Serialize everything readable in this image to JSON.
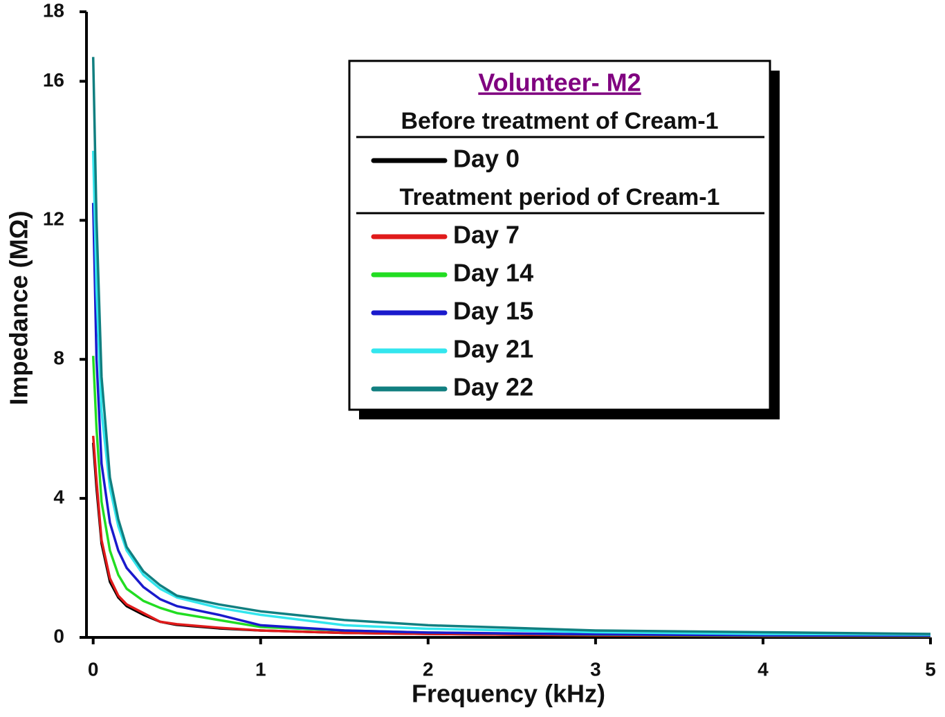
{
  "chart_data": {
    "type": "line",
    "x_label": "Frequency (kHz)",
    "y_label": "Impedance (MΩ)",
    "xlim": [
      -0.04,
      5
    ],
    "ylim": [
      0,
      18
    ],
    "xticks": [
      0,
      1,
      2,
      3,
      4,
      5
    ],
    "yticks": [
      0,
      4,
      8,
      12,
      16,
      18
    ],
    "legend_title": "Volunteer- M2",
    "legend_headings": [
      "Before treatment of Cream-1",
      "Treatment period of Cream-1"
    ],
    "legend_position": "upper right",
    "x": [
      0,
      0.02,
      0.05,
      0.1,
      0.15,
      0.2,
      0.3,
      0.4,
      0.5,
      0.75,
      1,
      1.5,
      2,
      3,
      4,
      5
    ],
    "series": [
      {
        "name": "Day 0",
        "color": "#000000",
        "values": [
          5.6,
          4.3,
          2.7,
          1.6,
          1.15,
          0.9,
          0.65,
          0.45,
          0.36,
          0.26,
          0.2,
          0.13,
          0.1,
          0.06,
          0.04,
          0.03
        ]
      },
      {
        "name": "Day 7",
        "color": "#e01b1b",
        "values": [
          5.8,
          4.5,
          2.8,
          1.7,
          1.2,
          0.95,
          0.7,
          0.45,
          0.38,
          0.28,
          0.2,
          0.13,
          0.1,
          0.06,
          0.04,
          0.03
        ]
      },
      {
        "name": "Day 14",
        "color": "#22dd22",
        "values": [
          8.1,
          6.0,
          3.9,
          2.5,
          1.8,
          1.4,
          1.05,
          0.85,
          0.7,
          0.5,
          0.3,
          0.2,
          0.14,
          0.08,
          0.05,
          0.04
        ]
      },
      {
        "name": "Day 15",
        "color": "#1a1acc",
        "values": [
          12.5,
          8,
          5,
          3.3,
          2.5,
          2.0,
          1.45,
          1.1,
          0.9,
          0.65,
          0.35,
          0.2,
          0.14,
          0.09,
          0.06,
          0.05
        ]
      },
      {
        "name": "Day 21",
        "color": "#33e6ee",
        "values": [
          14,
          10,
          6.5,
          4.3,
          3.2,
          2.5,
          1.8,
          1.4,
          1.15,
          0.85,
          0.65,
          0.35,
          0.25,
          0.15,
          0.1,
          0.08
        ]
      },
      {
        "name": "Day 22",
        "color": "#117f80",
        "values": [
          16.7,
          12,
          7.5,
          4.6,
          3.4,
          2.6,
          1.9,
          1.5,
          1.2,
          0.95,
          0.75,
          0.5,
          0.35,
          0.2,
          0.15,
          0.1
        ]
      }
    ]
  }
}
